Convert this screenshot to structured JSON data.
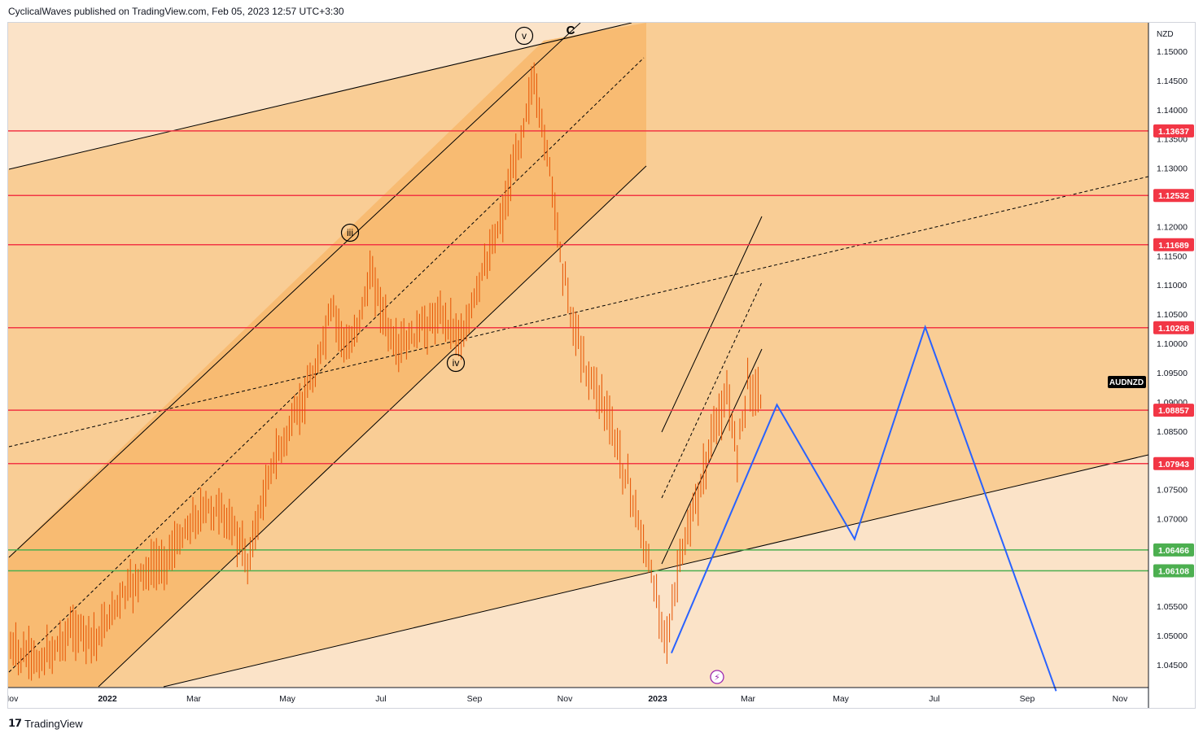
{
  "header": {
    "attribution": "CyclicalWaves published on TradingView.com, Feb 05, 2023 12:57 UTC+3:30"
  },
  "footer": {
    "brand": "TradingView"
  },
  "colors": {
    "bg_outer": "#fbe3c8",
    "bg_mid": "#f9cd95",
    "bg_inner": "#f8bb72",
    "hline_red": "#f23645",
    "hline_green": "#4caf50",
    "projection_blue": "#2962ff",
    "candle": "#e65100",
    "line_black": "#000000"
  },
  "chart_data": {
    "type": "candlestick",
    "symbol": "AUDNZD",
    "currency": "NZD",
    "ylim": [
      1.0405,
      1.1545
    ],
    "y_ticks": [
      1.15,
      1.145,
      1.14,
      1.135,
      1.13,
      1.12,
      1.115,
      1.11,
      1.105,
      1.1,
      1.095,
      1.09,
      1.085,
      1.075,
      1.07,
      1.055,
      1.05,
      1.045
    ],
    "x_ticks": [
      "Nov",
      "2022",
      "Mar",
      "May",
      "Jul",
      "Sep",
      "Nov",
      "2023",
      "Mar",
      "May",
      "Jul",
      "Sep",
      "Nov"
    ],
    "price_levels": [
      {
        "label": "1.13637",
        "value": 1.13637,
        "color": "red"
      },
      {
        "label": "1.12532",
        "value": 1.12532,
        "color": "red"
      },
      {
        "label": "1.11689",
        "value": 1.11689,
        "color": "red"
      },
      {
        "label": "1.10268",
        "value": 1.10268,
        "color": "red"
      },
      {
        "label": "1.08857",
        "value": 1.08857,
        "color": "red"
      },
      {
        "label": "1.07943",
        "value": 1.07943,
        "color": "red"
      },
      {
        "label": "1.06466",
        "value": 1.06466,
        "color": "green"
      },
      {
        "label": "1.06108",
        "value": 1.06108,
        "color": "green"
      }
    ],
    "wave_labels": [
      "iii",
      "iv",
      "v",
      "C"
    ],
    "price_path": [
      [
        "2021-11-01",
        1.0475
      ],
      [
        "2021-11-20",
        1.0455
      ],
      [
        "2021-12-10",
        1.051
      ],
      [
        "2021-12-25",
        1.0495
      ],
      [
        "2022-01-10",
        1.0565
      ],
      [
        "2022-01-25",
        1.0605
      ],
      [
        "2022-02-10",
        1.063
      ],
      [
        "2022-02-25",
        1.0685
      ],
      [
        "2022-03-10",
        1.072
      ],
      [
        "2022-03-25",
        1.0695
      ],
      [
        "2022-04-05",
        1.0625
      ],
      [
        "2022-04-20",
        1.0785
      ],
      [
        "2022-05-05",
        1.0865
      ],
      [
        "2022-05-20",
        1.0955
      ],
      [
        "2022-05-30",
        1.106
      ],
      [
        "2022-06-10",
        1.0985
      ],
      [
        "2022-06-25",
        1.112
      ],
      [
        "2022-07-10",
        1.0985
      ],
      [
        "2022-07-25",
        1.102
      ],
      [
        "2022-08-10",
        1.105
      ],
      [
        "2022-08-25",
        1.101
      ],
      [
        "2022-09-05",
        1.111
      ],
      [
        "2022-09-20",
        1.122
      ],
      [
        "2022-10-01",
        1.134
      ],
      [
        "2022-10-10",
        1.145
      ],
      [
        "2022-10-20",
        1.133
      ],
      [
        "2022-10-30",
        1.114
      ],
      [
        "2022-11-05",
        1.105
      ],
      [
        "2022-11-15",
        1.0955
      ],
      [
        "2022-11-25",
        1.091
      ],
      [
        "2022-12-05",
        1.0825
      ],
      [
        "2022-12-15",
        1.074
      ],
      [
        "2022-12-25",
        1.063
      ],
      [
        "2023-01-02",
        1.055
      ],
      [
        "2023-01-08",
        1.049
      ],
      [
        "2023-01-15",
        1.0625
      ],
      [
        "2023-01-25",
        1.071
      ],
      [
        "2023-02-05",
        1.0835
      ],
      [
        "2023-02-15",
        1.091
      ],
      [
        "2023-02-22",
        1.0815
      ],
      [
        "2023-03-01",
        1.0935
      ],
      [
        "2023-03-10",
        1.0905
      ]
    ],
    "projection": [
      [
        "2023-01-10",
        1.047
      ],
      [
        "2023-03-20",
        1.0895
      ],
      [
        "2023-05-10",
        1.0665
      ],
      [
        "2023-06-25",
        1.1028
      ],
      [
        "2023-09-20",
        1.0405
      ]
    ]
  }
}
